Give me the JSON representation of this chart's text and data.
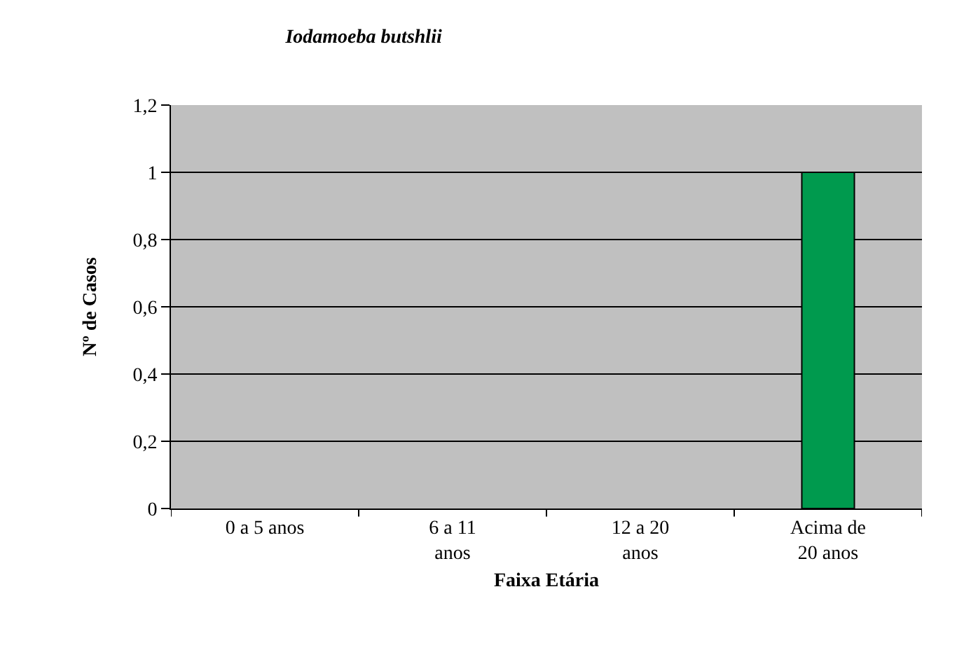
{
  "chart_data": {
    "type": "bar",
    "title": "Iodamoeba butshlii",
    "xlabel": "Faixa Etária",
    "ylabel": "Nº de Casos",
    "categories": [
      "0 a 5 anos",
      "6 a 11 anos",
      "12 a 20 anos",
      "Acima de 20 anos"
    ],
    "values": [
      0,
      0,
      0,
      1
    ],
    "color": "#009a4e",
    "ylim": [
      0,
      1.2
    ],
    "yticks": [
      0,
      {
        "value": 0.2,
        "label": "0,2"
      },
      {
        "value": 0.4,
        "label": "0,4"
      },
      {
        "value": 0.6,
        "label": "0,6"
      },
      {
        "value": 0.8,
        "label": "0,8"
      },
      1,
      {
        "value": 1.2,
        "label": "1,2"
      }
    ],
    "grid": "y"
  }
}
